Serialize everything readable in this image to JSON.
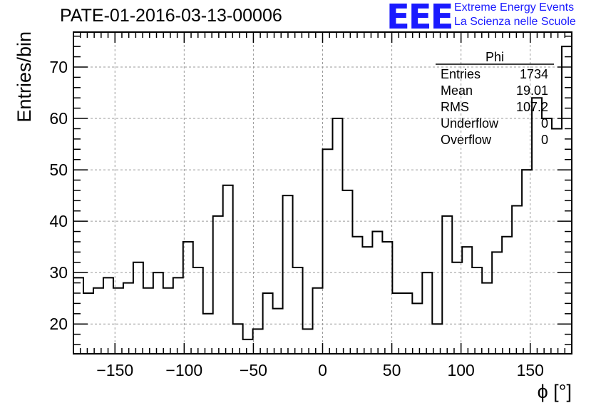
{
  "header": {
    "title": "PATE-01-2016-03-13-00006",
    "logo_text": "EEE",
    "logo_line1": "Extreme Energy Events",
    "logo_line2": "La Scienza nelle Scuole"
  },
  "stats_box": {
    "name": "Phi",
    "rows": [
      {
        "label": "Entries",
        "value": "1734"
      },
      {
        "label": "Mean",
        "value": "19.01"
      },
      {
        "label": "RMS",
        "value": "107.2"
      },
      {
        "label": "Underflow",
        "value": "0"
      },
      {
        "label": "Overflow",
        "value": "0"
      }
    ]
  },
  "colors": {
    "logo": "#1a1aff",
    "line": "#000000",
    "grid": "#9a9a9a"
  },
  "chart_data": {
    "type": "histogram",
    "xlabel": "ϕ [°]",
    "ylabel": "Entries/bin",
    "xlim": [
      -180,
      180
    ],
    "ylim": [
      14.2,
      76.8
    ],
    "bin_width": 7.2,
    "grid": true,
    "legend": "top-right",
    "x_ticks": [
      -150,
      -100,
      -50,
      0,
      50,
      100,
      150
    ],
    "x_tick_labels": [
      "−150",
      "−100",
      "−50",
      "0",
      "50",
      "100",
      "150"
    ],
    "y_ticks": [
      20,
      30,
      40,
      50,
      60,
      70
    ],
    "y_tick_labels": [
      "20",
      "30",
      "40",
      "50",
      "60",
      "70"
    ],
    "values": [
      29,
      26,
      27,
      29,
      27,
      28,
      32,
      27,
      30,
      27,
      29,
      36,
      31,
      22,
      41,
      47,
      20,
      17,
      19,
      26,
      23,
      45,
      31,
      19,
      27,
      54,
      60,
      46,
      37,
      35,
      38,
      36,
      26,
      26,
      24,
      30,
      20,
      41,
      32,
      35,
      31,
      28,
      34,
      37,
      43,
      50,
      64,
      60,
      58,
      74
    ]
  }
}
